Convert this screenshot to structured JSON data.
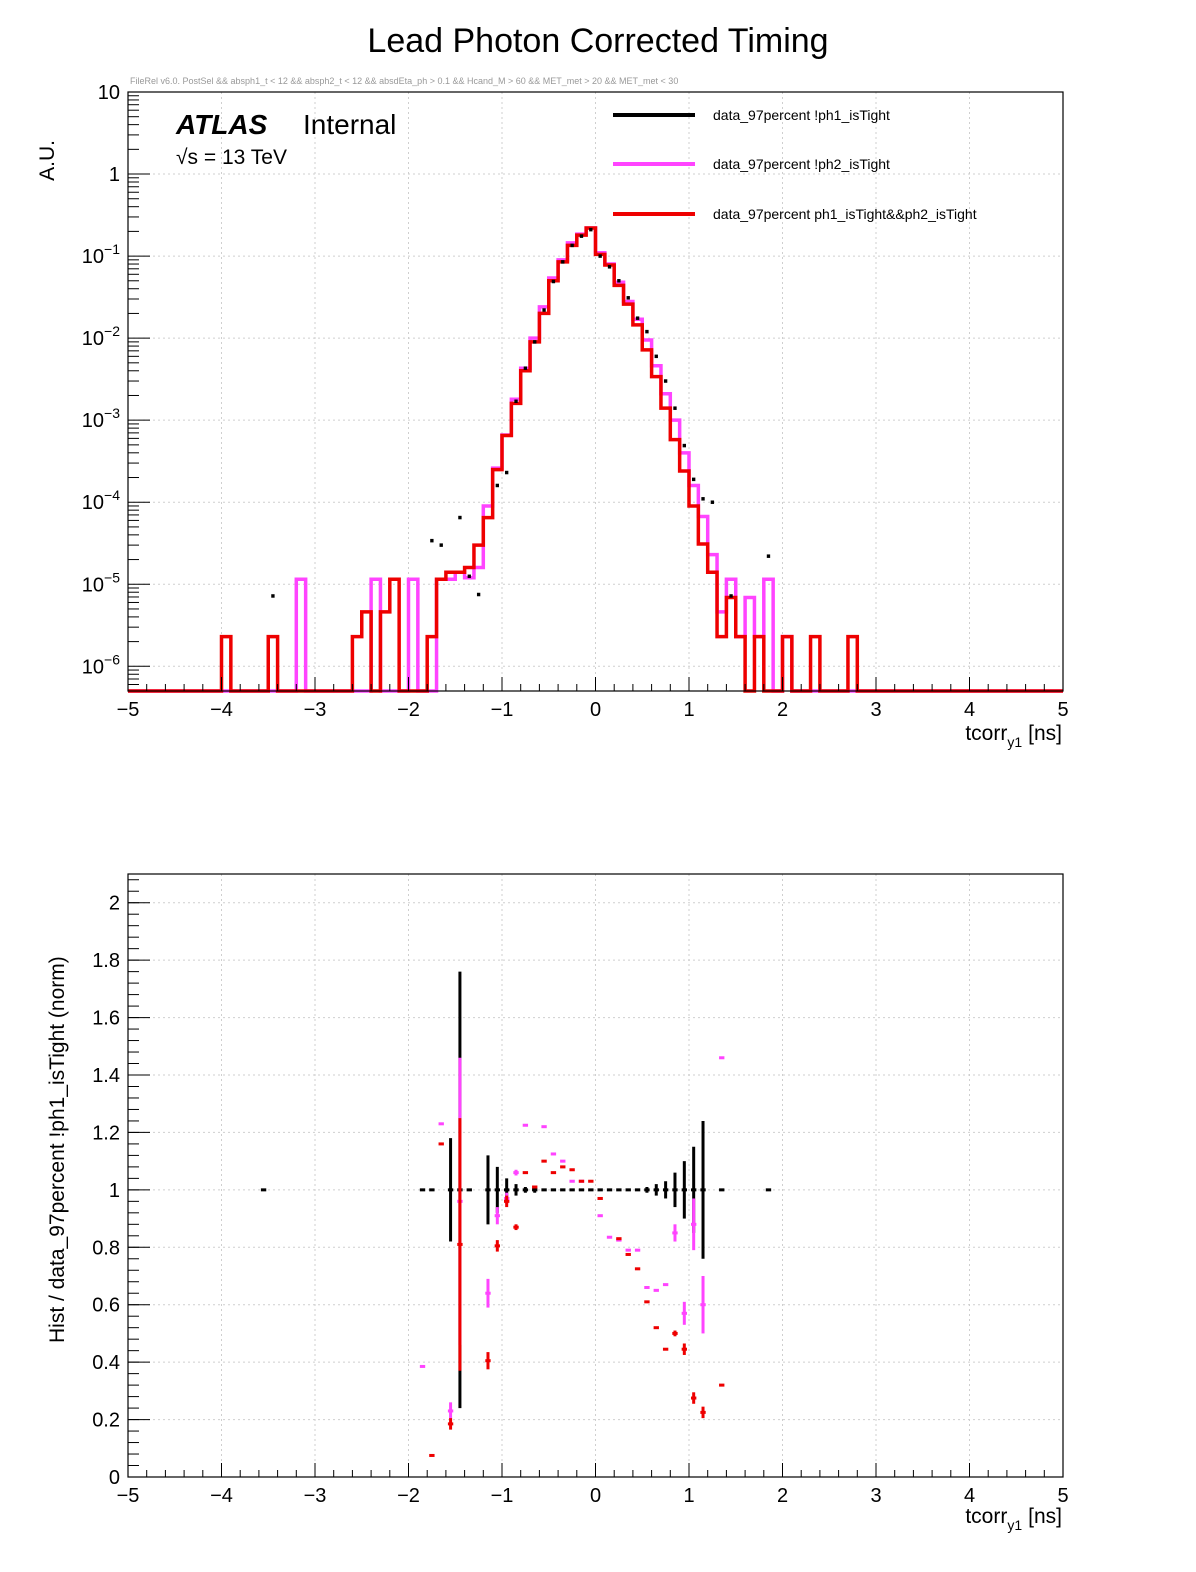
{
  "page_title": "Lead Photon Corrected Timing",
  "selection_text": "FileRel v6.0. PostSel &&  absph1_t < 12 && absph2_t < 12 && absdEta_ph > 0.1 && Hcand_M > 60 && MET_met > 20 && MET_met < 30",
  "atlas_label": "ATLAS",
  "atlas_status": "Internal",
  "energy_label": "√s = 13 TeV",
  "colors": {
    "black": "#000000",
    "magenta": "#ff44ff",
    "red": "#ee0000",
    "grid": "#cfcfcf"
  },
  "chart_data": [
    {
      "type": "histogram",
      "panel": "top",
      "yscale": "log",
      "xlabel_main": "tcorr",
      "xlabel_sub": "y1",
      "xlabel_unit": "[ns]",
      "ylabel": "A.U.",
      "xlim": [
        -5,
        5
      ],
      "ylim": [
        5e-07,
        10
      ],
      "x_ticks": [
        "−5",
        "−4",
        "−3",
        "−2",
        "−1",
        "0",
        "1",
        "2",
        "3",
        "4",
        "5"
      ],
      "y_ticks": [
        {
          "base": "10",
          "exp": "-6",
          "value": 1e-06
        },
        {
          "base": "10",
          "exp": "-5",
          "value": 1e-05
        },
        {
          "base": "10",
          "exp": "-4",
          "value": 0.0001
        },
        {
          "base": "10",
          "exp": "-3",
          "value": 0.001
        },
        {
          "base": "10",
          "exp": "-2",
          "value": 0.01
        },
        {
          "base": "10",
          "exp": "-1",
          "value": 0.1
        },
        {
          "base": "1",
          "exp": "",
          "value": 1
        },
        {
          "base": "10",
          "exp": "",
          "value": 10
        }
      ],
      "bin_width": 0.1,
      "legend": [
        "data_97percent  !ph1_isTight",
        "data_97percent  !ph2_isTight",
        "data_97percent  ph1_isTight&&ph2_isTight"
      ],
      "series_red": [
        [
          -4.0,
          2.3e-06
        ],
        [
          -3.5,
          2.3e-06
        ],
        [
          -2.6,
          2.3e-06
        ],
        [
          -2.5,
          4.6e-06
        ],
        [
          -2.3,
          4.6e-06
        ],
        [
          -2.2,
          1.15e-05
        ],
        [
          -1.8,
          2.3e-06
        ],
        [
          -1.7,
          1.15e-05
        ],
        [
          -1.6,
          1.4e-05
        ],
        [
          -1.5,
          1.4e-05
        ],
        [
          -1.4,
          1.6e-05
        ],
        [
          -1.3,
          3e-05
        ],
        [
          -1.2,
          6.5e-05
        ],
        [
          -1.1,
          0.00025
        ],
        [
          -1.0,
          0.00065
        ],
        [
          -0.9,
          0.0016
        ],
        [
          -0.8,
          0.004
        ],
        [
          -0.7,
          0.009
        ],
        [
          -0.6,
          0.02
        ],
        [
          -0.5,
          0.05
        ],
        [
          -0.4,
          0.085
        ],
        [
          -0.3,
          0.135
        ],
        [
          -0.2,
          0.18
        ],
        [
          -0.1,
          0.22
        ],
        [
          0.0,
          0.105
        ],
        [
          0.1,
          0.078
        ],
        [
          0.2,
          0.044
        ],
        [
          0.3,
          0.026
        ],
        [
          0.4,
          0.0145
        ],
        [
          0.5,
          0.0072
        ],
        [
          0.6,
          0.0034
        ],
        [
          0.7,
          0.0014
        ],
        [
          0.8,
          0.00058
        ],
        [
          0.9,
          0.00024
        ],
        [
          1.0,
          9e-05
        ],
        [
          1.1,
          3.1e-05
        ],
        [
          1.2,
          1.4e-05
        ],
        [
          1.3,
          2.3e-06
        ],
        [
          1.4,
          6.9e-06
        ],
        [
          1.5,
          2.3e-06
        ],
        [
          1.7,
          2.3e-06
        ],
        [
          2.0,
          2.3e-06
        ],
        [
          2.3,
          2.3e-06
        ],
        [
          2.7,
          2.3e-06
        ]
      ],
      "series_magenta": [
        [
          -3.2,
          1.15e-05
        ],
        [
          -2.4,
          1.15e-05
        ],
        [
          -2.0,
          1.15e-05
        ],
        [
          -1.7,
          1.15e-05
        ],
        [
          -1.6,
          1.15e-05
        ],
        [
          -1.5,
          1.4e-05
        ],
        [
          -1.4,
          1.2e-05
        ],
        [
          -1.3,
          1.6e-05
        ],
        [
          -1.2,
          9e-05
        ],
        [
          -1.1,
          0.00026
        ],
        [
          -1.0,
          0.00066
        ],
        [
          -0.9,
          0.0018
        ],
        [
          -0.8,
          0.0043
        ],
        [
          -0.7,
          0.01
        ],
        [
          -0.6,
          0.024
        ],
        [
          -0.5,
          0.054
        ],
        [
          -0.4,
          0.09
        ],
        [
          -0.3,
          0.145
        ],
        [
          -0.2,
          0.185
        ],
        [
          -0.1,
          0.22
        ],
        [
          0.0,
          0.11
        ],
        [
          0.1,
          0.08
        ],
        [
          0.2,
          0.048
        ],
        [
          0.3,
          0.028
        ],
        [
          0.4,
          0.017
        ],
        [
          0.5,
          0.0095
        ],
        [
          0.6,
          0.0046
        ],
        [
          0.7,
          0.0021
        ],
        [
          0.8,
          0.001
        ],
        [
          0.9,
          0.0004
        ],
        [
          1.0,
          0.00016
        ],
        [
          1.1,
          6.7e-05
        ],
        [
          1.2,
          2.3e-05
        ],
        [
          1.3,
          4.6e-06
        ],
        [
          1.4,
          1.15e-05
        ],
        [
          1.5,
          2.3e-06
        ],
        [
          1.6,
          6.9e-06
        ],
        [
          1.7,
          2.3e-06
        ],
        [
          1.8,
          1.15e-05
        ],
        [
          2.0,
          2.3e-06
        ]
      ],
      "series_black": [
        [
          -3.5,
          7.2e-06
        ],
        [
          -1.8,
          3.4e-05
        ],
        [
          -1.7,
          3e-05
        ],
        [
          -1.5,
          6.5e-05
        ],
        [
          -1.4,
          1.25e-05
        ],
        [
          -1.3,
          7.5e-06
        ],
        [
          -1.1,
          0.00016
        ],
        [
          -1.0,
          0.00023
        ],
        [
          -0.9,
          0.0017
        ],
        [
          -0.8,
          0.0043
        ],
        [
          -0.7,
          0.009
        ],
        [
          -0.6,
          0.022
        ],
        [
          -0.5,
          0.049
        ],
        [
          -0.4,
          0.085
        ],
        [
          -0.3,
          0.135
        ],
        [
          -0.2,
          0.175
        ],
        [
          -0.1,
          0.21
        ],
        [
          0.0,
          0.1
        ],
        [
          0.1,
          0.074
        ],
        [
          0.2,
          0.05
        ],
        [
          0.3,
          0.031
        ],
        [
          0.4,
          0.0175
        ],
        [
          0.5,
          0.012
        ],
        [
          0.6,
          0.006
        ],
        [
          0.7,
          0.003
        ],
        [
          0.8,
          0.0014
        ],
        [
          0.9,
          0.00049
        ],
        [
          1.0,
          0.00019
        ],
        [
          1.1,
          0.00011
        ],
        [
          1.2,
          0.0001
        ],
        [
          1.4,
          7.2e-06
        ],
        [
          1.8,
          2.2e-05
        ]
      ]
    },
    {
      "type": "scatter",
      "panel": "bottom",
      "xlabel_main": "tcorr",
      "xlabel_sub": "y1",
      "xlabel_unit": "[ns]",
      "ylabel": "Hist / data_97percent  !ph1_isTight (norm)",
      "xlim": [
        -5,
        5
      ],
      "ylim": [
        0,
        2.1
      ],
      "x_ticks": [
        "−5",
        "−4",
        "−3",
        "−2",
        "−1",
        "0",
        "1",
        "2",
        "3",
        "4",
        "5"
      ],
      "y_ticks": [
        "0",
        "0.2",
        "0.4",
        "0.6",
        "0.8",
        "1",
        "1.2",
        "1.4",
        "1.6",
        "1.8",
        "2"
      ],
      "ratio_black": [
        [
          -3.55,
          1.0,
          0.0
        ],
        [
          -1.85,
          1.0,
          0.0
        ],
        [
          -1.75,
          1.0,
          0.0
        ],
        [
          -1.55,
          1.0,
          0.18
        ],
        [
          -1.45,
          1.0,
          0.76
        ],
        [
          -1.35,
          1.0,
          0.0
        ],
        [
          -1.15,
          1.0,
          0.12
        ],
        [
          -1.05,
          1.0,
          0.08
        ],
        [
          -0.95,
          1.0,
          0.04
        ],
        [
          -0.85,
          1.0,
          0.02
        ],
        [
          -0.75,
          1.0,
          0.01
        ],
        [
          -0.65,
          1.0,
          0.01
        ],
        [
          -0.55,
          1.0,
          0.0
        ],
        [
          -0.45,
          1.0,
          0.0
        ],
        [
          -0.35,
          1.0,
          0.0
        ],
        [
          -0.25,
          1.0,
          0.0
        ],
        [
          -0.15,
          1.0,
          0.0
        ],
        [
          -0.05,
          1.0,
          0.0
        ],
        [
          0.05,
          1.0,
          0.0
        ],
        [
          0.15,
          1.0,
          0.0
        ],
        [
          0.25,
          1.0,
          0.0
        ],
        [
          0.35,
          1.0,
          0.0
        ],
        [
          0.45,
          1.0,
          0.0
        ],
        [
          0.55,
          1.0,
          0.01
        ],
        [
          0.65,
          1.0,
          0.02
        ],
        [
          0.75,
          1.0,
          0.03
        ],
        [
          0.85,
          1.0,
          0.06
        ],
        [
          0.95,
          1.0,
          0.1
        ],
        [
          1.05,
          1.0,
          0.15
        ],
        [
          1.15,
          1.0,
          0.24
        ],
        [
          1.35,
          1.0,
          0.0
        ],
        [
          1.85,
          1.0,
          0.0
        ]
      ],
      "ratio_magenta": [
        [
          -1.85,
          0.385,
          0.0
        ],
        [
          -1.65,
          1.23,
          0.0
        ],
        [
          -1.55,
          0.23,
          0.03
        ],
        [
          -1.45,
          0.96,
          0.5
        ],
        [
          -1.15,
          0.64,
          0.05
        ],
        [
          -1.05,
          0.91,
          0.03
        ],
        [
          -0.95,
          0.97,
          0.02
        ],
        [
          -0.85,
          1.06,
          0.01
        ],
        [
          -0.75,
          1.225,
          0.0
        ],
        [
          -0.55,
          1.22,
          0.0
        ],
        [
          -0.45,
          1.125,
          0.0
        ],
        [
          -0.35,
          1.1,
          0.0
        ],
        [
          -0.25,
          1.03,
          0.0
        ],
        [
          -0.15,
          1.03,
          0.0
        ],
        [
          0.05,
          0.91,
          0.0
        ],
        [
          0.15,
          0.835,
          0.0
        ],
        [
          0.25,
          0.825,
          0.0
        ],
        [
          0.35,
          0.79,
          0.0
        ],
        [
          0.45,
          0.79,
          0.0
        ],
        [
          0.55,
          0.66,
          0.0
        ],
        [
          0.65,
          0.65,
          0.0
        ],
        [
          0.75,
          0.67,
          0.0
        ],
        [
          0.85,
          0.85,
          0.03
        ],
        [
          0.95,
          0.57,
          0.04
        ],
        [
          1.05,
          0.88,
          0.09
        ],
        [
          1.15,
          0.6,
          0.1
        ],
        [
          1.35,
          1.46,
          0.0
        ]
      ],
      "ratio_red": [
        [
          -1.75,
          0.075,
          0.0
        ],
        [
          -1.65,
          1.16,
          0.0
        ],
        [
          -1.55,
          0.185,
          0.02
        ],
        [
          -1.45,
          0.81,
          0.44
        ],
        [
          -1.15,
          0.405,
          0.03
        ],
        [
          -1.05,
          0.805,
          0.02
        ],
        [
          -0.95,
          0.96,
          0.02
        ],
        [
          -0.85,
          0.87,
          0.01
        ],
        [
          -0.75,
          1.06,
          0.0
        ],
        [
          -0.65,
          1.01,
          0.0
        ],
        [
          -0.55,
          1.1,
          0.0
        ],
        [
          -0.45,
          1.06,
          0.0
        ],
        [
          -0.35,
          1.08,
          0.0
        ],
        [
          -0.25,
          1.07,
          0.0
        ],
        [
          -0.15,
          1.03,
          0.0
        ],
        [
          -0.05,
          1.03,
          0.0
        ],
        [
          0.05,
          0.97,
          0.0
        ],
        [
          0.25,
          0.83,
          0.0
        ],
        [
          0.35,
          0.775,
          0.0
        ],
        [
          0.45,
          0.725,
          0.0
        ],
        [
          0.55,
          0.61,
          0.0
        ],
        [
          0.65,
          0.52,
          0.0
        ],
        [
          0.75,
          0.445,
          0.0
        ],
        [
          0.85,
          0.5,
          0.01
        ],
        [
          0.95,
          0.445,
          0.02
        ],
        [
          1.05,
          0.275,
          0.02
        ],
        [
          1.15,
          0.225,
          0.02
        ],
        [
          1.35,
          0.32,
          0.0
        ]
      ]
    }
  ]
}
